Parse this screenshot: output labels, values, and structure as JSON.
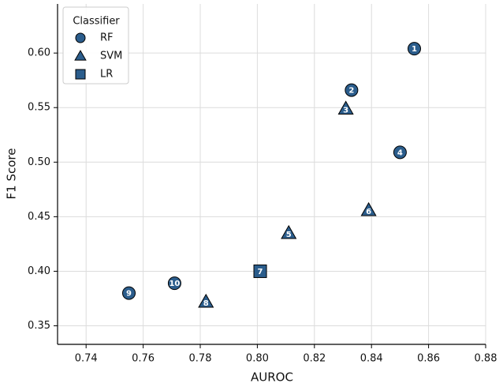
{
  "chart_data": {
    "type": "scatter",
    "x_label": "AUROC",
    "y_label": "F1 Score",
    "legend_title": "Classifier",
    "legend": "upper left",
    "grid": true,
    "xlim": [
      0.73,
      0.88
    ],
    "ylim": [
      0.333,
      0.645
    ],
    "xticks": [
      {
        "value": 0.74,
        "label": "0.74"
      },
      {
        "value": 0.76,
        "label": "0.76"
      },
      {
        "value": 0.78,
        "label": "0.78"
      },
      {
        "value": 0.8,
        "label": "0.80"
      },
      {
        "value": 0.82,
        "label": "0.82"
      },
      {
        "value": 0.84,
        "label": "0.84"
      },
      {
        "value": 0.86,
        "label": "0.86"
      },
      {
        "value": 0.88,
        "label": "0.88"
      }
    ],
    "yticks": [
      {
        "value": 0.35,
        "label": "0.35"
      },
      {
        "value": 0.4,
        "label": "0.40"
      },
      {
        "value": 0.45,
        "label": "0.45"
      },
      {
        "value": 0.5,
        "label": "0.50"
      },
      {
        "value": 0.55,
        "label": "0.55"
      },
      {
        "value": 0.6,
        "label": "0.60"
      }
    ],
    "series": [
      {
        "name": "RF",
        "marker": "circle",
        "color": "#2b5d8c",
        "x": [
          0.855,
          0.833,
          0.85,
          0.755,
          0.771
        ],
        "values": [
          0.604,
          0.566,
          0.509,
          0.38,
          0.389
        ],
        "labels": [
          "1",
          "2",
          "4",
          "9",
          "10"
        ]
      },
      {
        "name": "SVM",
        "marker": "triangle",
        "color": "#2b5d8c",
        "x": [
          0.831,
          0.811,
          0.839,
          0.782
        ],
        "values": [
          0.549,
          0.435,
          0.456,
          0.372
        ],
        "labels": [
          "3",
          "5",
          "6",
          "8"
        ]
      },
      {
        "name": "LR",
        "marker": "square",
        "color": "#2b5d8c",
        "x": [
          0.801
        ],
        "values": [
          0.4
        ],
        "labels": [
          "7"
        ]
      }
    ]
  }
}
